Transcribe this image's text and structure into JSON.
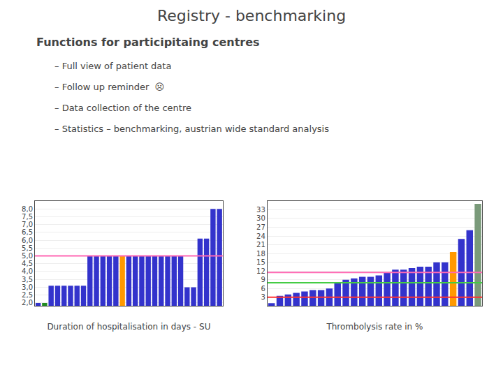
{
  "title": "Registry - benchmarking",
  "subtitle": "Functions for participitaing centres",
  "annotations": [
    "– Full view of patient data",
    "– Follow up reminder  ☹",
    "– Data collection of the centre",
    "– Statistics – benchmarking, austrian wide standard analysis"
  ],
  "chart_data": [
    {
      "type": "bar",
      "xlabel": "Duration of hospitalisation in days - SU",
      "categories": [
        null,
        null,
        null,
        null,
        null,
        null,
        null,
        null,
        null,
        null,
        null,
        null,
        null,
        null,
        null,
        null,
        null,
        null,
        null,
        null,
        null,
        null,
        null,
        null,
        null,
        null,
        null,
        null,
        null
      ],
      "values": [
        2.0,
        2.0,
        3.1,
        3.1,
        3.1,
        3.1,
        3.1,
        3.1,
        5.0,
        5.0,
        5.0,
        5.0,
        5.0,
        5.0,
        5.0,
        5.0,
        5.0,
        5.0,
        5.0,
        5.0,
        5.0,
        5.0,
        5.0,
        3.0,
        3.0,
        6.1,
        6.1,
        8.0,
        8.0
      ],
      "colors": [
        "#3333cc",
        "#228B22",
        "#3333cc",
        "#3333cc",
        "#3333cc",
        "#3333cc",
        "#3333cc",
        "#3333cc",
        "#3333cc",
        "#3333cc",
        "#3333cc",
        "#3333cc",
        "#3333cc",
        "#FF9900",
        "#3333cc",
        "#3333cc",
        "#3333cc",
        "#3333cc",
        "#3333cc",
        "#3333cc",
        "#3333cc",
        "#3333cc",
        "#3333cc",
        "#3333cc",
        "#3333cc",
        "#3333cc",
        "#3333cc",
        "#3333cc",
        "#3333cc"
      ],
      "ylim": [
        1.8,
        8.5
      ],
      "yticks": [
        {
          "value": 2.0,
          "label": "2,0"
        },
        {
          "value": 2.5,
          "label": "2,5"
        },
        {
          "value": 3.0,
          "label": "3,0"
        },
        {
          "value": 3.5,
          "label": "3,5"
        },
        {
          "value": 4.0,
          "label": "4,0"
        },
        {
          "value": 4.5,
          "label": "4,5"
        },
        {
          "value": 5.0,
          "label": "5,0"
        },
        {
          "value": 5.5,
          "label": "5,5"
        },
        {
          "value": 6.0,
          "label": "6,0"
        },
        {
          "value": 6.5,
          "label": "6,5"
        },
        {
          "value": 7.0,
          "label": "7,0"
        },
        {
          "value": 7.5,
          "label": "7,5"
        },
        {
          "value": 8.0,
          "label": "8,0"
        }
      ],
      "reference_lines": [
        {
          "y": 5.0,
          "color": "#FF69B4"
        }
      ],
      "grid": true,
      "tick_labels": "y"
    },
    {
      "type": "bar",
      "xlabel": "Thrombolysis rate in %",
      "categories": [
        null,
        null,
        null,
        null,
        null,
        null,
        null,
        null,
        null,
        null,
        null,
        null,
        null,
        null,
        null,
        null,
        null,
        null,
        null,
        null,
        null,
        null,
        null,
        null,
        null,
        null
      ],
      "values": [
        1.0,
        3.5,
        4.0,
        4.5,
        5.0,
        5.5,
        5.5,
        6.0,
        8.0,
        9.0,
        9.5,
        10.0,
        10.0,
        10.5,
        11.5,
        12.5,
        12.5,
        13.0,
        13.5,
        13.5,
        15.0,
        15.0,
        18.5,
        23.0,
        26.0,
        35.0
      ],
      "colors": [
        "#3333cc",
        "#3333cc",
        "#3333cc",
        "#3333cc",
        "#3333cc",
        "#3333cc",
        "#3333cc",
        "#3333cc",
        "#3333cc",
        "#3333cc",
        "#3333cc",
        "#3333cc",
        "#3333cc",
        "#3333cc",
        "#3333cc",
        "#3333cc",
        "#3333cc",
        "#3333cc",
        "#3333cc",
        "#3333cc",
        "#3333cc",
        "#3333cc",
        "#FF9900",
        "#3333cc",
        "#3333cc",
        "#7a9a7a"
      ],
      "ylim": [
        0,
        36
      ],
      "yticks": [
        3,
        6,
        9,
        12,
        15,
        18,
        21,
        24,
        27,
        30,
        33
      ],
      "reference_lines": [
        {
          "y": 3.0,
          "color": "#FF3333"
        },
        {
          "y": 8.0,
          "color": "#44CC44"
        },
        {
          "y": 11.5,
          "color": "#FF69B4"
        }
      ],
      "grid": true,
      "tick_labels": "y"
    }
  ]
}
